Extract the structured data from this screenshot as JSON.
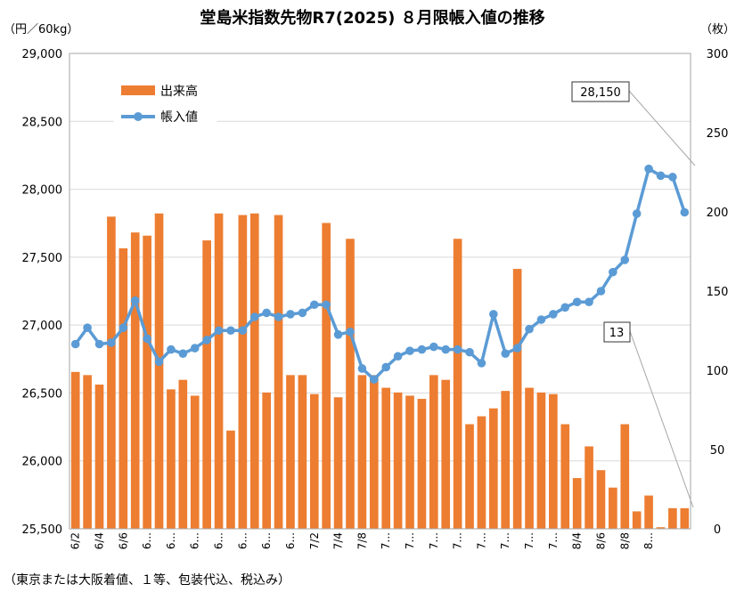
{
  "chart_data": {
    "type": "bar+line",
    "title": "堂島米指数先物R7(2025) ８月限帳入値の推移",
    "left_unit": "（円／60kg）",
    "right_unit": "（枚）",
    "footnote": "（東京または大阪着値、１等、包装代込、税込み）",
    "legend": [
      {
        "name": "出来高",
        "type": "bar",
        "color": "#ED7D31"
      },
      {
        "name": "帳入値",
        "type": "line",
        "color": "#5B9BD5"
      }
    ],
    "left_axis": {
      "min": 25500,
      "max": 29000,
      "step": 500,
      "tick_labels": [
        "25,500",
        "26,000",
        "26,500",
        "27,000",
        "27,500",
        "28,000",
        "28,500",
        "29,000"
      ]
    },
    "right_axis": {
      "min": 0,
      "max": 300,
      "step": 50,
      "tick_labels": [
        "0",
        "50",
        "100",
        "150",
        "200",
        "250",
        "300"
      ]
    },
    "grid": true,
    "x_labels": [
      "6/2",
      "",
      "6/4",
      "",
      "6/6",
      "",
      "6...",
      "",
      "6...",
      "",
      "6...",
      "",
      "6...",
      "",
      "6...",
      "",
      "6...",
      "",
      "6...",
      "",
      "7/2",
      "",
      "7/4",
      "",
      "7/8",
      "",
      "7...",
      "",
      "7...",
      "",
      "7...",
      "",
      "7...",
      "",
      "7...",
      "",
      "7...",
      "",
      "7...",
      "",
      "7...",
      "",
      "8/4",
      "",
      "8/6",
      "",
      "8/8",
      "",
      "8..."
    ],
    "volume": [
      99,
      97,
      91,
      197,
      177,
      187,
      185,
      199,
      88,
      94,
      84,
      182,
      199,
      62,
      198,
      199,
      86,
      198,
      97,
      97,
      85,
      193,
      83,
      183,
      97,
      97,
      89,
      86,
      84,
      82,
      97,
      94,
      183,
      66,
      71,
      76,
      87,
      164,
      89,
      86,
      85,
      66,
      32,
      52,
      37,
      26,
      66,
      11,
      21,
      1,
      13,
      13
    ],
    "settlement": [
      26860,
      26980,
      26860,
      26870,
      26980,
      27180,
      26900,
      26730,
      26820,
      26790,
      26830,
      26890,
      26960,
      26960,
      26960,
      27060,
      27090,
      27060,
      27080,
      27090,
      27150,
      27150,
      26930,
      26950,
      26680,
      26600,
      26690,
      26770,
      26810,
      26820,
      26840,
      26820,
      26820,
      26800,
      26720,
      27080,
      26790,
      26830,
      26970,
      27040,
      27080,
      27130,
      27170,
      27170,
      27250,
      27390,
      27480,
      27820,
      28150,
      28100,
      28090,
      27830
    ],
    "annotations": [
      {
        "text": "28,150"
      },
      {
        "text": "13"
      }
    ]
  }
}
